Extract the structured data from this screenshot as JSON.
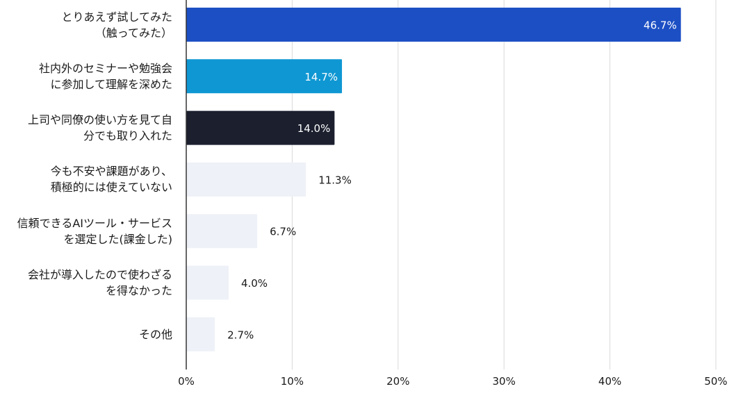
{
  "chart_data": {
    "type": "bar",
    "orientation": "horizontal",
    "categories": [
      "とりあえず試してみた\n（触ってみた）",
      "社内外のセミナーや勉強会\nに参加して理解を深めた",
      "上司や同僚の使い方を見て自\n分でも取り入れた",
      "今も不安や課題があり、\n積極的には使えていない",
      "信頼できるAIツール・サービス\nを選定した(課金した)",
      "会社が導入したので使わざる\nを得なかった",
      "その他"
    ],
    "values": [
      46.7,
      14.7,
      14.0,
      11.3,
      6.7,
      4.0,
      2.7
    ],
    "value_labels": [
      "46.7%",
      "14.7%",
      "14.0%",
      "11.3%",
      "6.7%",
      "4.0%",
      "2.7%"
    ],
    "bar_colors": [
      "#1c4fc4",
      "#0f97d3",
      "#1b1f2e",
      "#eef1f7",
      "#eef1f7",
      "#eef1f7",
      "#eef1f7"
    ],
    "label_colors": [
      "#ffffff",
      "#ffffff",
      "#ffffff",
      "#1a1a1a",
      "#1a1a1a",
      "#1a1a1a",
      "#1a1a1a"
    ],
    "xlim": [
      0,
      50
    ],
    "x_ticks": [
      0,
      10,
      20,
      30,
      40,
      50
    ],
    "x_tick_labels": [
      "0%",
      "10%",
      "20%",
      "30%",
      "40%",
      "50%"
    ],
    "grid": true,
    "title": "",
    "xlabel": "",
    "ylabel": ""
  }
}
